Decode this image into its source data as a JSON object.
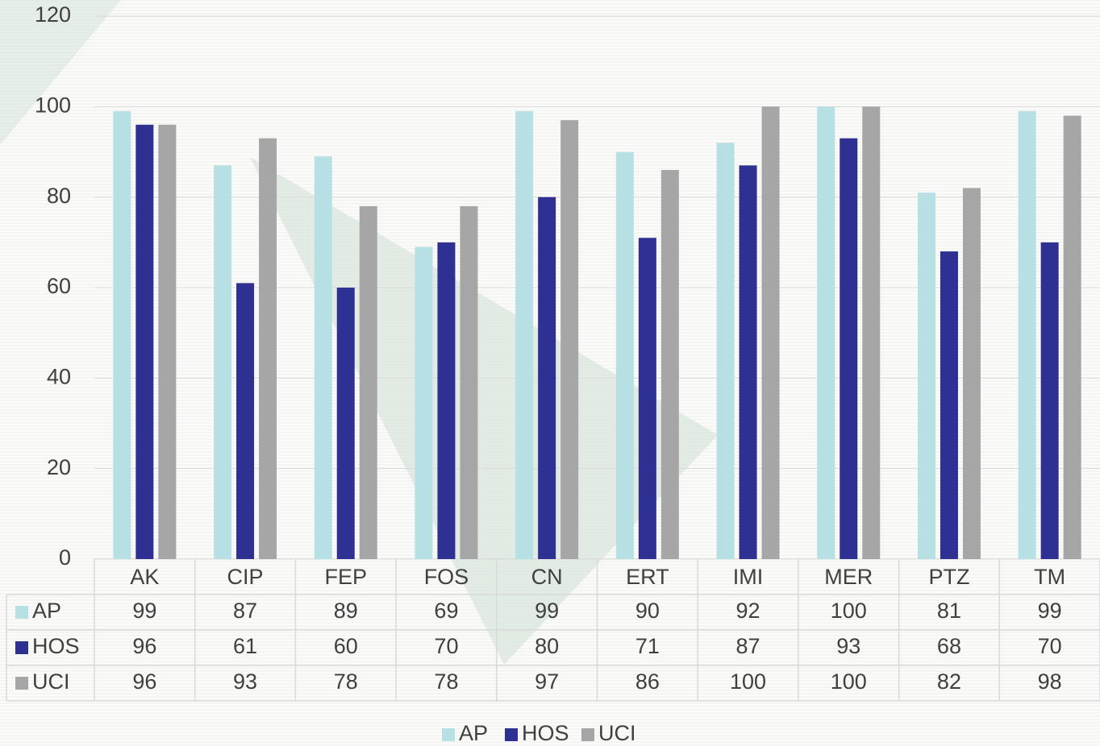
{
  "chart_data": {
    "type": "bar",
    "categories": [
      "AK",
      "CIP",
      "FEP",
      "FOS",
      "CN",
      "ERT",
      "IMI",
      "MER",
      "PTZ",
      "TM"
    ],
    "series": [
      {
        "name": "AP",
        "color": "#b7e0e4",
        "values": [
          99,
          87,
          89,
          69,
          99,
          90,
          92,
          100,
          81,
          99
        ]
      },
      {
        "name": "HOS",
        "color": "#2e3192",
        "values": [
          96,
          61,
          60,
          70,
          80,
          71,
          87,
          93,
          68,
          70
        ]
      },
      {
        "name": "UCI",
        "color": "#a6a6a6",
        "values": [
          96,
          93,
          78,
          78,
          97,
          86,
          100,
          100,
          82,
          98
        ]
      }
    ],
    "ylim": [
      0,
      120
    ],
    "yticks": [
      0,
      20,
      40,
      60,
      80,
      100,
      120
    ],
    "grid": true,
    "legend": "bottom",
    "data_table": true
  }
}
